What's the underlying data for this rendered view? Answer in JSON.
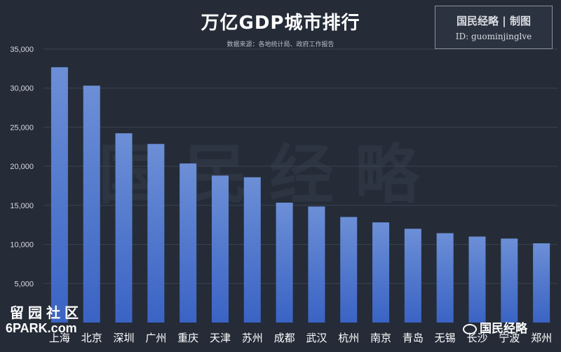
{
  "title": "万亿GDP城市排行",
  "subtitle": "数据来源：各地统计局、政府工作报告",
  "credit": {
    "line1": "国民经略 | 制图",
    "line2": "ID: guominjinglve"
  },
  "watermark": "国民经略",
  "watermark_left": {
    "line1": "留园社区",
    "line2": "6PARK.com"
  },
  "watermark_right": "国民经略",
  "colors": {
    "background": "#252c38",
    "bar_top": "#6c8fd6",
    "bar_bottom": "#3a63c4",
    "grid": "#3b4352",
    "axis_text": "#d5d9e0"
  },
  "chart_data": {
    "type": "bar",
    "categories": [
      "上海",
      "北京",
      "深圳",
      "广州",
      "重庆",
      "天津",
      "苏州",
      "成都",
      "武汉",
      "杭州",
      "南京",
      "青岛",
      "无锡",
      "长沙",
      "宁波",
      "郑州"
    ],
    "values": [
      32680,
      30320,
      24222,
      22859,
      20363,
      18810,
      18597,
      15343,
      14847,
      13509,
      12820,
      12002,
      11439,
      11003,
      10746,
      10143
    ],
    "yticks": [
      "5,000",
      "10,000",
      "15,000",
      "20,000",
      "25,000",
      "30,000",
      "35,000"
    ],
    "ytick_values": [
      5000,
      10000,
      15000,
      20000,
      25000,
      30000,
      35000
    ],
    "ylim": [
      0,
      35000
    ],
    "grid": true
  }
}
